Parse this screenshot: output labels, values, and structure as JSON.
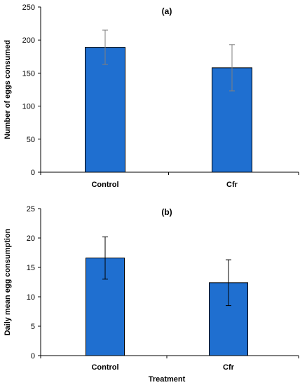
{
  "chart_data": [
    {
      "type": "bar",
      "title": "(a)",
      "categories": [
        "Control",
        "Cfr"
      ],
      "values": [
        189,
        158
      ],
      "error": [
        26,
        35
      ],
      "ylabel": "Number of eggs consumed",
      "xlabel": "",
      "ylim": [
        0,
        250
      ],
      "yticks": [
        0,
        50,
        100,
        150,
        200,
        250
      ],
      "bar_color": "#1f6fd0",
      "error_color_hint": "#7f7f7f",
      "grid": false
    },
    {
      "type": "bar",
      "title": "(b)",
      "categories": [
        "Control",
        "Cfr"
      ],
      "values": [
        16.6,
        12.4
      ],
      "error": [
        3.6,
        3.9
      ],
      "ylabel": "Daily mean egg consumption",
      "xlabel": "Treatment",
      "ylim": [
        0,
        25
      ],
      "yticks": [
        0,
        5,
        10,
        15,
        20,
        25
      ],
      "bar_color": "#1f6fd0",
      "error_color_hint": "#000000",
      "grid": false
    }
  ]
}
